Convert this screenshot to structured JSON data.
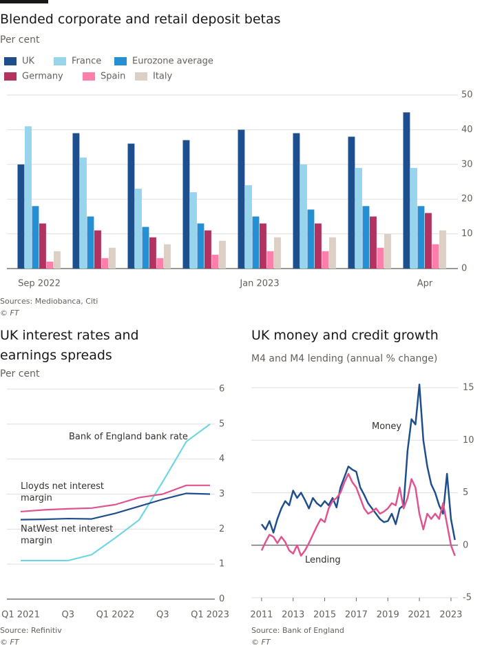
{
  "chart_data": [
    {
      "type": "bar",
      "title": "Blended corporate and retail deposit betas",
      "subtitle": "Per cent",
      "categories": [
        "Sep 2022",
        null,
        null,
        null,
        "Jan 2023",
        null,
        null,
        "Apr"
      ],
      "series": [
        {
          "name": "UK",
          "color": "#1f4e8c",
          "values": [
            30,
            39,
            36,
            37,
            40,
            39,
            38,
            45
          ]
        },
        {
          "name": "France",
          "color": "#98d4ea",
          "values": [
            41,
            32,
            23,
            22,
            24,
            30,
            29,
            29
          ]
        },
        {
          "name": "Eurozone average",
          "color": "#268fd3",
          "values": [
            18,
            15,
            12,
            13,
            15,
            17,
            18,
            18
          ]
        },
        {
          "name": "Germany",
          "color": "#b3325e",
          "values": [
            13,
            11,
            9,
            11,
            13,
            13,
            15,
            16
          ]
        },
        {
          "name": "Spain",
          "color": "#ff7fab",
          "values": [
            2,
            3,
            3,
            4,
            5,
            5,
            6,
            7
          ]
        },
        {
          "name": "Italy",
          "color": "#dcd0c6",
          "values": [
            5,
            6,
            7,
            8,
            9,
            9,
            10,
            11
          ]
        }
      ],
      "ylim": [
        0,
        50
      ],
      "yticks": [
        0,
        10,
        20,
        30,
        40,
        50
      ],
      "grid": true,
      "legend": "top-left",
      "source": "Sources: Mediobanca, Citi",
      "credit": "© FT"
    },
    {
      "type": "line",
      "title": "UK interest rates and earnings spreads",
      "subtitle": "Per cent",
      "categories": [
        "Q1 2021",
        null,
        "Q3",
        null,
        "Q1 2022",
        null,
        "Q3",
        null,
        "Q1 2023"
      ],
      "series": [
        {
          "name": "Bank of England bank rate",
          "color": "#6fd6e3",
          "values": [
            1.1,
            1.1,
            1.1,
            1.27,
            1.75,
            2.26,
            3.35,
            4.5,
            5.0
          ]
        },
        {
          "name": "Lloyds net interest margin",
          "color": "#e1538f",
          "values": [
            2.5,
            2.55,
            2.58,
            2.6,
            2.7,
            2.9,
            3.0,
            3.25,
            3.25
          ]
        },
        {
          "name": "NatWest net interest margin",
          "color": "#1f4e8c",
          "values": [
            2.27,
            2.28,
            2.3,
            2.29,
            2.45,
            2.65,
            2.85,
            3.02,
            3.0
          ]
        }
      ],
      "ylim": [
        0,
        6
      ],
      "yticks": [
        0,
        1,
        2,
        3,
        4,
        5,
        6
      ],
      "grid": true,
      "source": "Source: Refinitiv",
      "credit": "© FT"
    },
    {
      "type": "line",
      "title": "UK money and credit growth",
      "subtitle": "M4 and M4 lending (annual % change)",
      "x": [
        2011.0,
        2011.25,
        2011.5,
        2011.75,
        2012.0,
        2012.25,
        2012.5,
        2012.75,
        2013.0,
        2013.25,
        2013.5,
        2013.75,
        2014.0,
        2014.25,
        2014.5,
        2014.75,
        2015.0,
        2015.25,
        2015.5,
        2015.75,
        2016.0,
        2016.25,
        2016.5,
        2016.75,
        2017.0,
        2017.25,
        2017.5,
        2017.75,
        2018.0,
        2018.25,
        2018.5,
        2018.75,
        2019.0,
        2019.25,
        2019.5,
        2019.75,
        2020.0,
        2020.25,
        2020.5,
        2020.75,
        2021.0,
        2021.25,
        2021.5,
        2021.75,
        2022.0,
        2022.25,
        2022.5,
        2022.75,
        2023.0,
        2023.25
      ],
      "series": [
        {
          "name": "Money",
          "color": "#1f4e8c",
          "values": [
            2.0,
            1.5,
            2.3,
            1.2,
            2.5,
            3.5,
            4.2,
            3.8,
            5.2,
            4.5,
            5.0,
            4.3,
            3.5,
            4.5,
            4.0,
            3.7,
            4.2,
            3.8,
            4.5,
            3.6,
            5.5,
            6.5,
            7.5,
            7.2,
            7.0,
            5.5,
            4.8,
            4.0,
            3.5,
            3.0,
            2.5,
            2.2,
            2.3,
            3.0,
            2.0,
            3.5,
            3.8,
            9.0,
            12.0,
            11.5,
            15.3,
            10.0,
            7.5,
            5.8,
            5.0,
            3.8,
            3.0,
            6.8,
            2.5,
            0.5
          ]
        },
        {
          "name": "Lending",
          "color": "#e1538f",
          "values": [
            -0.5,
            0.3,
            1.0,
            0.8,
            0.2,
            0.8,
            0.3,
            -0.5,
            -0.8,
            0,
            -1.0,
            -0.5,
            0.2,
            1.0,
            1.8,
            2.5,
            2.2,
            3.5,
            4.2,
            4.5,
            5.0,
            6.0,
            6.8,
            6.0,
            5.5,
            4.5,
            3.5,
            3.0,
            3.2,
            3.5,
            3.0,
            3.2,
            3.5,
            4.0,
            3.8,
            5.5,
            3.5,
            4.5,
            6.3,
            5.5,
            3.0,
            1.5,
            3.0,
            2.5,
            3.0,
            2.5,
            4.0,
            2.0,
            0,
            -1.0
          ]
        }
      ],
      "xlim": [
        2010.35,
        2023.44
      ],
      "xticks": [
        2011,
        2013,
        2015,
        2017,
        2019,
        2021,
        2023
      ],
      "ylim": [
        -5,
        15
      ],
      "yticks": [
        -5,
        0,
        5,
        10,
        15
      ],
      "grid": true,
      "source": "Source: Bank of England",
      "credit": "© FT"
    }
  ]
}
